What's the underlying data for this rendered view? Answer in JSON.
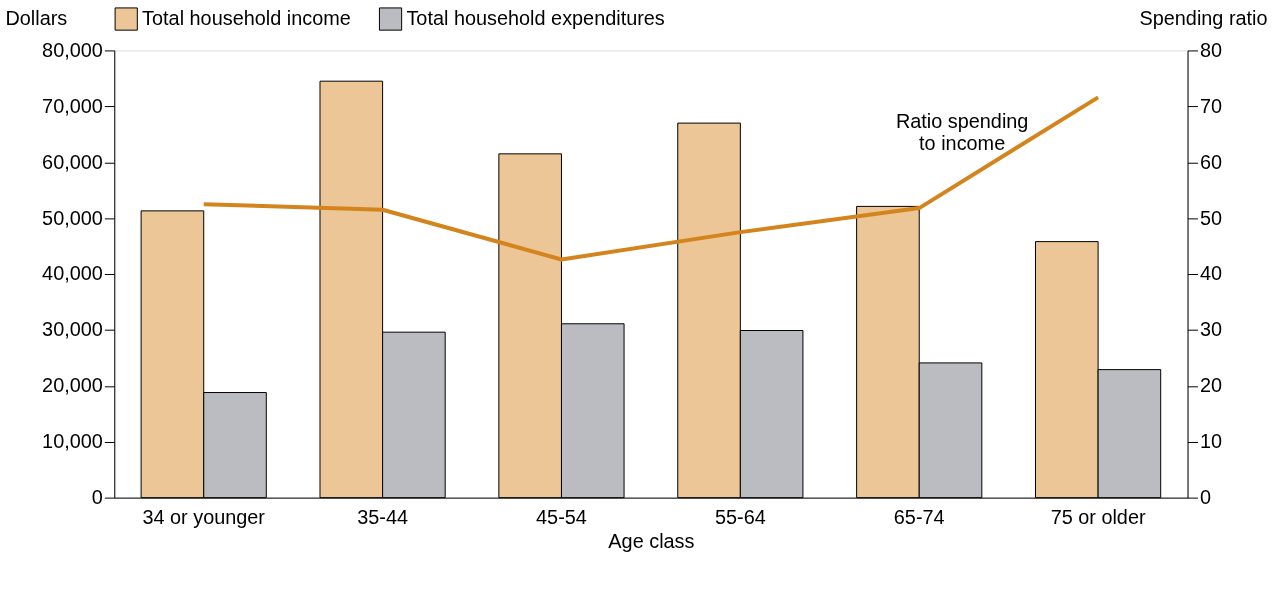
{
  "chart_data": {
    "type": "bar",
    "categories": [
      "34 or younger",
      "35-44",
      "45-54",
      "55-64",
      "65-74",
      "75 or older"
    ],
    "series": [
      {
        "name": "Total household income",
        "color": "#ecc697",
        "values": [
          51300,
          74500,
          61500,
          67000,
          52100,
          45800
        ]
      },
      {
        "name": "Total household expenditures",
        "color": "#bbbcc1",
        "values": [
          18800,
          29600,
          31100,
          29900,
          24100,
          22900
        ]
      },
      {
        "type": "line",
        "axis": "y2",
        "color": "#d4841c",
        "values": [
          52.5,
          51.5,
          42.6,
          47.5,
          51.8,
          71.6
        ]
      }
    ],
    "xlabel": "Age class",
    "ylabel": "Dollars",
    "y2label": "Spending ratio",
    "ylim": [
      0,
      80000
    ],
    "yticks": [
      0,
      {
        "value": 10000,
        "label": "10,000"
      },
      {
        "value": 20000,
        "label": "20,000"
      },
      {
        "value": 30000,
        "label": "30,000"
      },
      {
        "value": 40000,
        "label": "40,000"
      },
      {
        "value": 50000,
        "label": "50,000"
      },
      {
        "value": 60000,
        "label": "60,000"
      },
      {
        "value": 70000,
        "label": "70,000"
      },
      {
        "value": 80000,
        "label": "80,000"
      }
    ],
    "y2lim": [
      0,
      80
    ],
    "y2ticks": [
      0,
      10,
      20,
      30,
      40,
      50,
      60,
      70,
      80
    ],
    "legend": "top",
    "grid": false,
    "annotations": [
      "Ratio spending\nto income"
    ]
  }
}
